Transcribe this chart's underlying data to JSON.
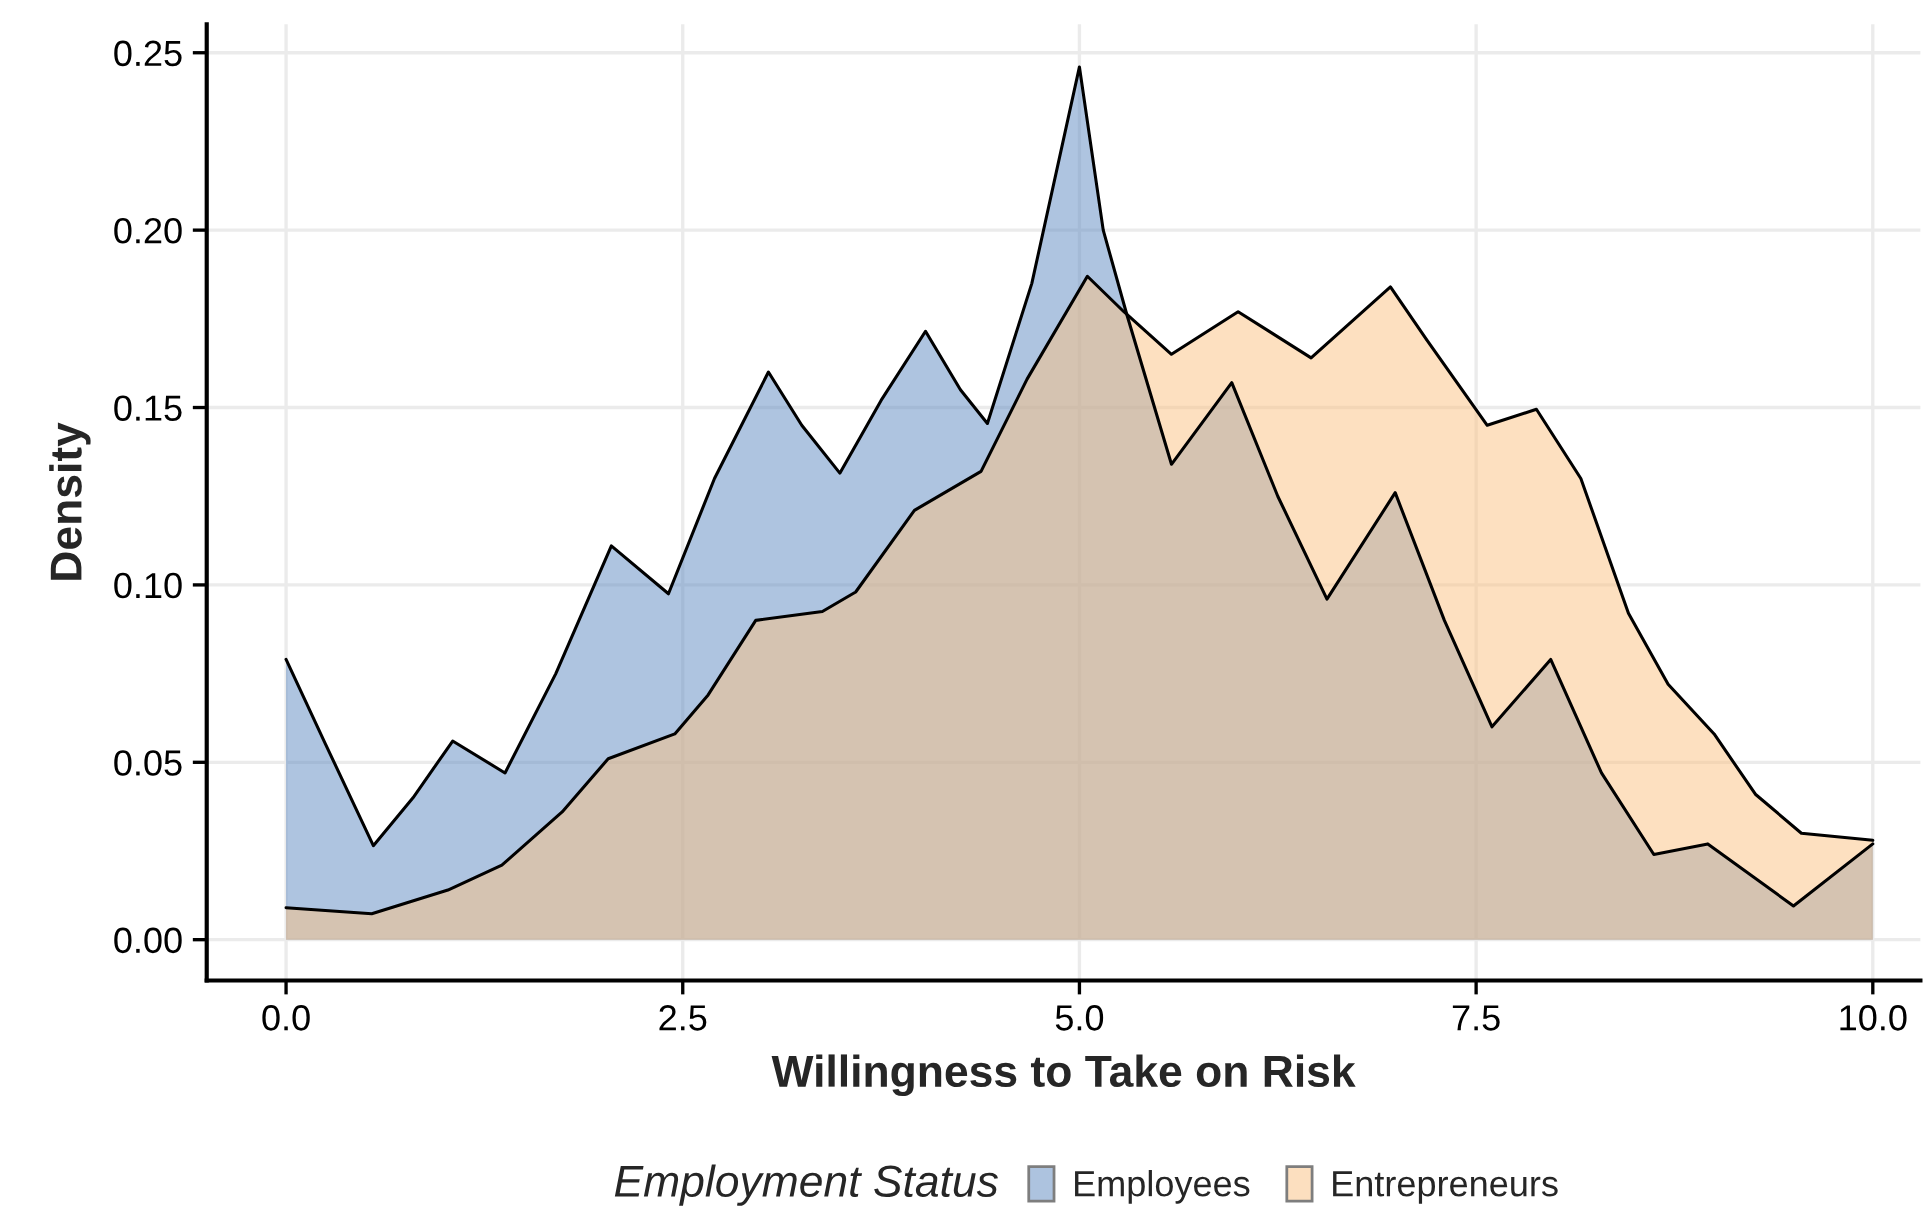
{
  "chart_data": {
    "type": "area",
    "xlabel": "Willingness to Take on Risk",
    "ylabel": "Density",
    "legend_title": "Employment Status",
    "legend": "bottom",
    "grid": true,
    "xlim": [
      -0.5,
      10.3
    ],
    "xticks": [
      {
        "value": 0,
        "label": "0.0"
      },
      2.5,
      {
        "value": 5,
        "label": "5.0"
      },
      7.5,
      {
        "value": 10,
        "label": "10.0"
      }
    ],
    "ylim": [
      -0.0115,
      0.258
    ],
    "yticks": [
      {
        "value": 0,
        "label": "0.00"
      },
      0.05,
      {
        "value": 0.1,
        "label": "0.10"
      },
      0.15,
      {
        "value": 0.2,
        "label": "0.20"
      },
      0.25
    ],
    "series": [
      {
        "name": "Employees",
        "color": "#5d89c1",
        "x": [
          0,
          0.25,
          0.55,
          0.8,
          1.05,
          1.38,
          1.7,
          2.05,
          2.41,
          2.7,
          3.04,
          3.25,
          3.49,
          3.75,
          4.03,
          4.25,
          4.42,
          4.7,
          5.0,
          5.15,
          5.3,
          5.58,
          5.96,
          6.25,
          6.56,
          6.99,
          7.3,
          7.6,
          7.97,
          8.29,
          8.62,
          8.96,
          9.5,
          10
        ],
        "values": [
          0.079,
          0.055,
          0.0265,
          0.04,
          0.056,
          0.047,
          0.075,
          0.111,
          0.0975,
          0.13,
          0.16,
          0.145,
          0.1315,
          0.152,
          0.1715,
          0.155,
          0.1455,
          0.185,
          0.246,
          0.2,
          0.176,
          0.134,
          0.157,
          0.125,
          0.096,
          0.126,
          0.09,
          0.06,
          0.079,
          0.047,
          0.024,
          0.027,
          0.0095,
          0.027
        ]
      },
      {
        "name": "Entrepreneurs",
        "color": "#fbc181",
        "x": [
          0,
          0.54,
          1.02,
          1.36,
          1.74,
          2.03,
          2.45,
          2.66,
          2.96,
          3.38,
          3.59,
          3.96,
          4.38,
          4.67,
          5.05,
          5.28,
          5.58,
          6.0,
          6.46,
          6.96,
          7.19,
          7.57,
          7.88,
          8.16,
          8.46,
          8.71,
          9.0,
          9.26,
          9.55,
          10
        ],
        "values": [
          0.009,
          0.0073,
          0.014,
          0.021,
          0.036,
          0.051,
          0.058,
          0.069,
          0.09,
          0.0925,
          0.098,
          0.121,
          0.132,
          0.158,
          0.187,
          0.177,
          0.165,
          0.177,
          0.164,
          0.184,
          0.169,
          0.145,
          0.1495,
          0.13,
          0.092,
          0.072,
          0.058,
          0.041,
          0.03,
          0.028
        ]
      }
    ]
  }
}
